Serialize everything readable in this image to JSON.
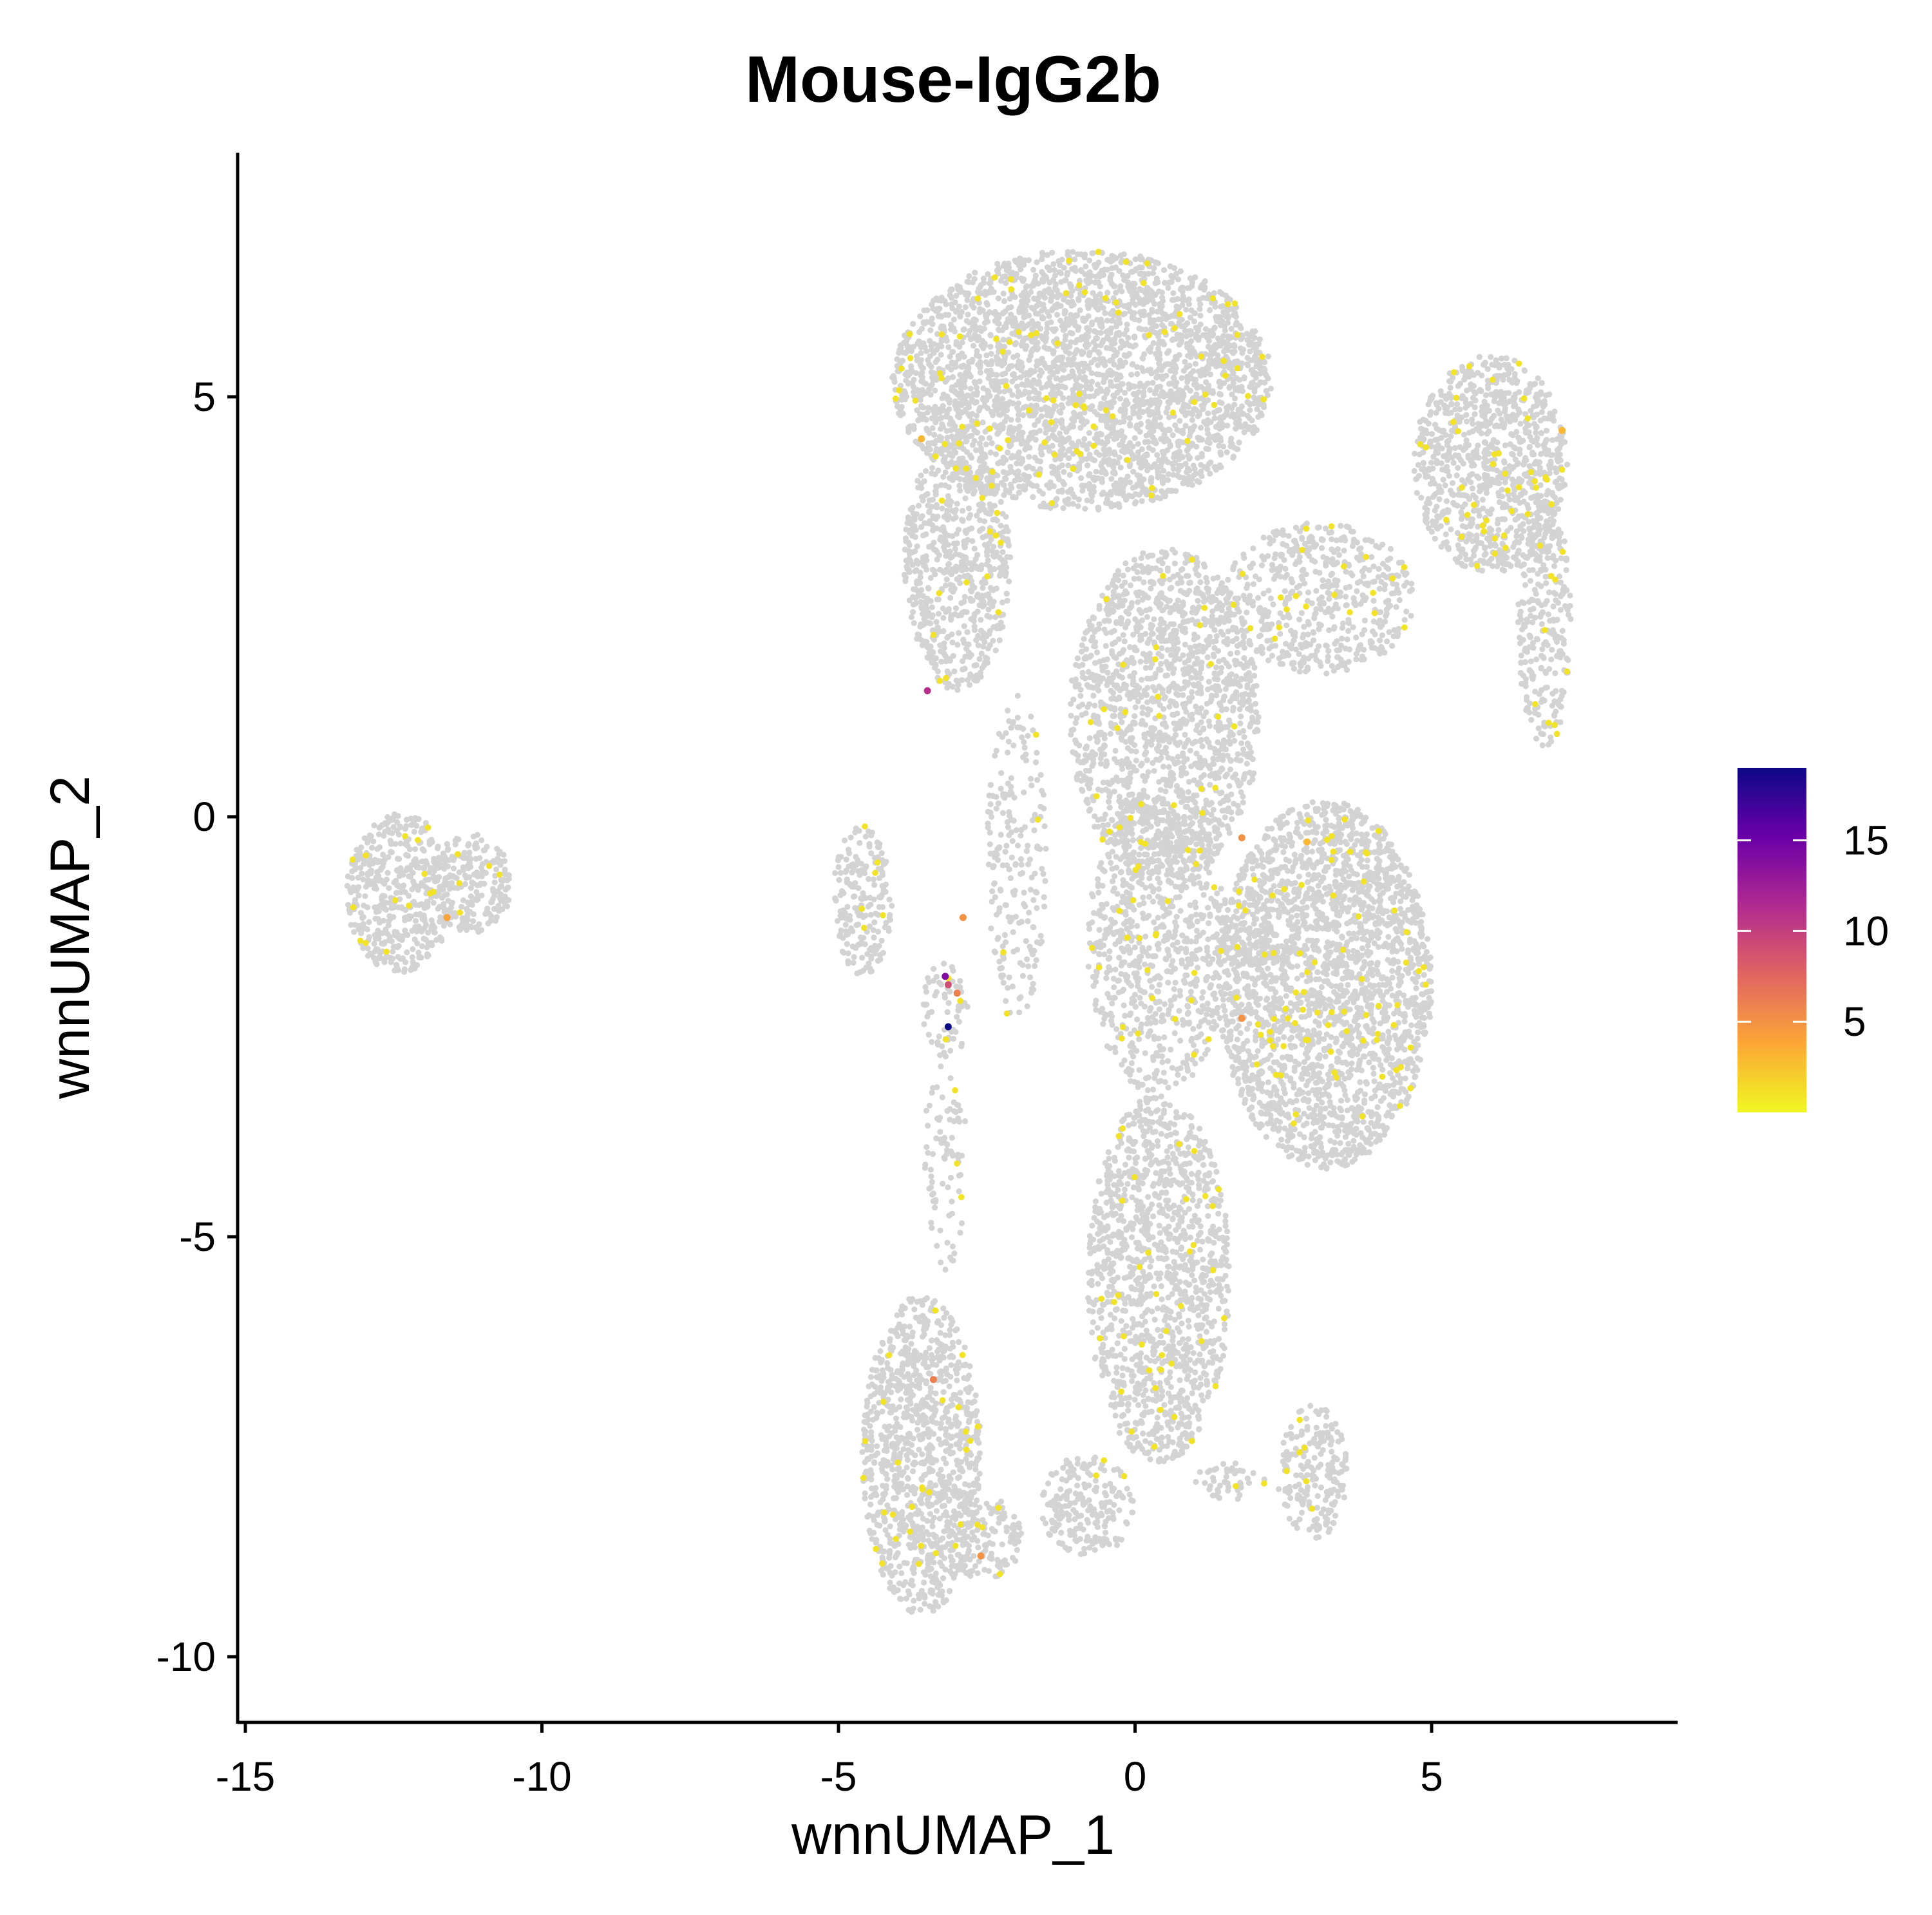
{
  "chart_data": {
    "type": "scatter",
    "title": "Mouse-IgG2b",
    "xlabel": "wnnUMAP_1",
    "ylabel": "wnnUMAP_2",
    "xlim": [
      -15.2,
      9.0
    ],
    "ylim": [
      -10.8,
      7.9
    ],
    "x_ticks": [
      -15,
      -10,
      -5,
      0,
      5
    ],
    "y_ticks": [
      -10,
      -5,
      0,
      5
    ],
    "x_tick_labels": [
      "-15",
      "-10",
      "-5",
      "0",
      "5"
    ],
    "y_tick_labels": [
      "-10",
      "-5",
      "0",
      "5"
    ],
    "grid": false,
    "background_color": "#d3d3d3",
    "colorbar": {
      "position": "right",
      "min": 0,
      "max": 19,
      "ticks": [
        5,
        10,
        15
      ],
      "tick_labels": [
        "5",
        "10",
        "15"
      ],
      "colors": [
        "#f0f921",
        "#fca636",
        "#e16462",
        "#b12a90",
        "#6a00a8",
        "#0d0887"
      ]
    },
    "clusters": [
      {
        "cx": -12.4,
        "cy": -0.9,
        "rx": 0.9,
        "ry": 0.95,
        "density": 0.9
      },
      {
        "cx": -11.2,
        "cy": -0.8,
        "rx": 0.7,
        "ry": 0.6,
        "density": 0.9
      },
      {
        "cx": -0.9,
        "cy": 5.2,
        "rx": 3.2,
        "ry": 1.55,
        "density": 1.0
      },
      {
        "cx": -3.0,
        "cy": 3.0,
        "rx": 0.9,
        "ry": 1.5,
        "density": 0.8
      },
      {
        "cx": 0.5,
        "cy": 1.2,
        "rx": 1.6,
        "ry": 2.0,
        "density": 0.8
      },
      {
        "cx": 6.0,
        "cy": 4.2,
        "rx": 1.3,
        "ry": 1.3,
        "density": 0.9
      },
      {
        "cx": 6.9,
        "cy": 2.3,
        "rx": 0.45,
        "ry": 1.5,
        "density": 0.7
      },
      {
        "cx": 3.1,
        "cy": 2.6,
        "rx": 1.6,
        "ry": 0.9,
        "density": 0.6
      },
      {
        "cx": 3.2,
        "cy": -2.0,
        "rx": 1.8,
        "ry": 2.2,
        "density": 1.0
      },
      {
        "cx": 0.4,
        "cy": -1.5,
        "rx": 1.2,
        "ry": 1.8,
        "density": 0.6
      },
      {
        "cx": 0.4,
        "cy": -5.5,
        "rx": 1.2,
        "ry": 2.2,
        "density": 0.8
      },
      {
        "cx": -3.6,
        "cy": -7.6,
        "rx": 1.0,
        "ry": 1.9,
        "density": 0.9
      },
      {
        "cx": -2.5,
        "cy": -8.6,
        "rx": 0.6,
        "ry": 0.5,
        "density": 0.7
      },
      {
        "cx": -0.8,
        "cy": -8.2,
        "rx": 0.8,
        "ry": 0.6,
        "density": 0.7
      },
      {
        "cx": 3.0,
        "cy": -7.8,
        "rx": 0.6,
        "ry": 0.8,
        "density": 0.7
      },
      {
        "cx": 1.6,
        "cy": -7.9,
        "rx": 0.6,
        "ry": 0.25,
        "density": 0.5
      },
      {
        "cx": -4.6,
        "cy": -1.0,
        "rx": 0.5,
        "ry": 0.9,
        "density": 0.7
      },
      {
        "cx": -3.2,
        "cy": -2.3,
        "rx": 0.4,
        "ry": 0.6,
        "density": 0.4
      },
      {
        "cx": -2.0,
        "cy": -0.5,
        "rx": 0.5,
        "ry": 2.0,
        "density": 0.35
      },
      {
        "cx": -3.2,
        "cy": -4.0,
        "rx": 0.35,
        "ry": 1.4,
        "density": 0.3
      }
    ],
    "highlighted_points": [
      {
        "x": -3.5,
        "y": 1.5,
        "value": 11
      },
      {
        "x": -3.15,
        "y": -2.5,
        "value": 19
      },
      {
        "x": -3.2,
        "y": -1.9,
        "value": 14
      },
      {
        "x": -3.15,
        "y": -2.0,
        "value": 9
      },
      {
        "x": -3.0,
        "y": -2.1,
        "value": 6
      },
      {
        "x": -2.9,
        "y": -1.2,
        "value": 5
      },
      {
        "x": -3.4,
        "y": -6.7,
        "value": 6
      },
      {
        "x": -2.6,
        "y": -8.8,
        "value": 5
      },
      {
        "x": -11.6,
        "y": -1.2,
        "value": 4
      },
      {
        "x": 1.8,
        "y": -0.25,
        "value": 5
      },
      {
        "x": 1.8,
        "y": -2.4,
        "value": 5
      },
      {
        "x": 7.2,
        "y": 4.6,
        "value": 3
      },
      {
        "x": -3.6,
        "y": 4.5,
        "value": 3
      },
      {
        "x": 2.9,
        "y": -0.3,
        "value": 3
      }
    ]
  }
}
